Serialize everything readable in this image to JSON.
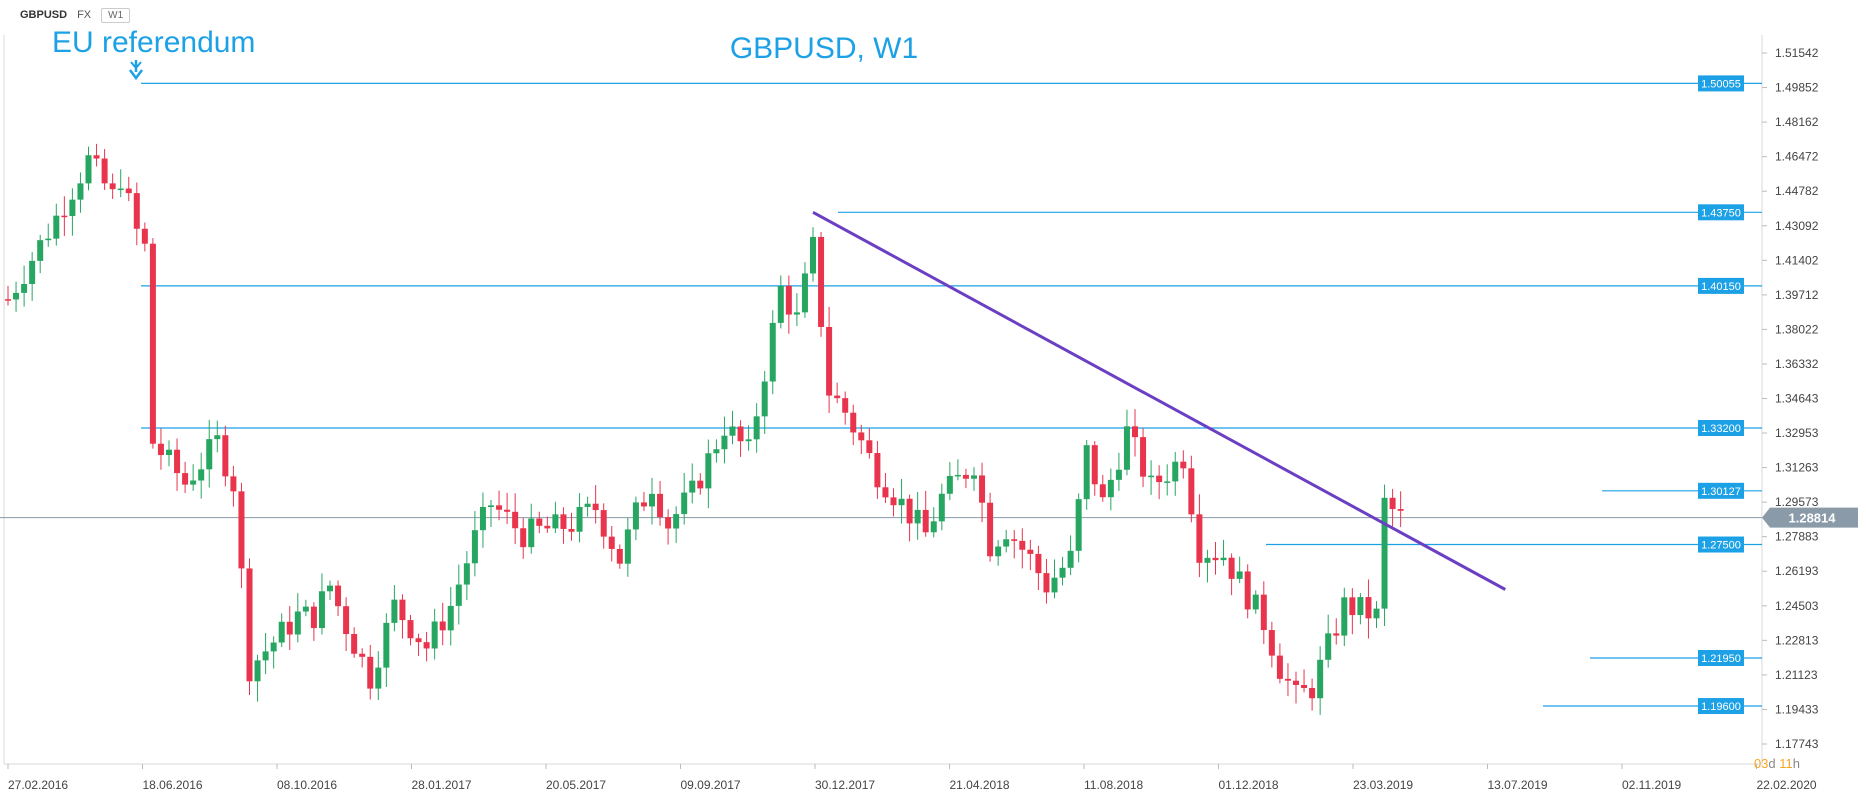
{
  "toolbar": {
    "symbol": "GBPUSD",
    "market": "FX",
    "timeframe": "W1"
  },
  "chart_data": {
    "type": "candlestick",
    "title": "GBPUSD, W1",
    "annotation": "EU referendum",
    "y_ticks": [
      "1.51542",
      "1.49852",
      "1.48162",
      "1.46472",
      "1.44782",
      "1.43092",
      "1.41402",
      "1.39712",
      "1.38022",
      "1.36332",
      "1.34643",
      "1.32953",
      "1.31263",
      "1.29573",
      "1.27883",
      "1.26193",
      "1.24503",
      "1.22813",
      "1.21123",
      "1.19433",
      "1.17743"
    ],
    "ylim": [
      1.17743,
      1.51542
    ],
    "x_ticks": [
      "27.02.2016",
      "18.06.2016",
      "08.10.2016",
      "28.01.2017",
      "20.05.2017",
      "09.09.2017",
      "30.12.2017",
      "21.04.2018",
      "11.08.2018",
      "01.12.2018",
      "23.03.2019",
      "13.07.2019",
      "02.11.2019",
      "22.02.2020"
    ],
    "current_price": "1.28814",
    "countdown": {
      "days": "03",
      "d_unit": "d",
      "hours": "11",
      "h_unit": "h"
    },
    "levels": [
      {
        "label": "1.50055",
        "value": 1.50055
      },
      {
        "label": "1.43750",
        "value": 1.4375
      },
      {
        "label": "1.40150",
        "value": 1.4015
      },
      {
        "label": "1.33200",
        "value": 1.332
      },
      {
        "label": "1.30127",
        "value": 1.30127
      },
      {
        "label": "1.27500",
        "value": 1.275
      },
      {
        "label": "1.21950",
        "value": 1.2195
      },
      {
        "label": "1.19600",
        "value": 1.196
      }
    ],
    "trendline": {
      "from": [
        100,
        1.4375
      ],
      "to": [
        186,
        1.253
      ]
    },
    "colors": {
      "up": "#27a661",
      "down": "#e8344c",
      "level": "#1da1e6",
      "trend": "#6a3fc3",
      "price": "#8a9aa8"
    }
  }
}
